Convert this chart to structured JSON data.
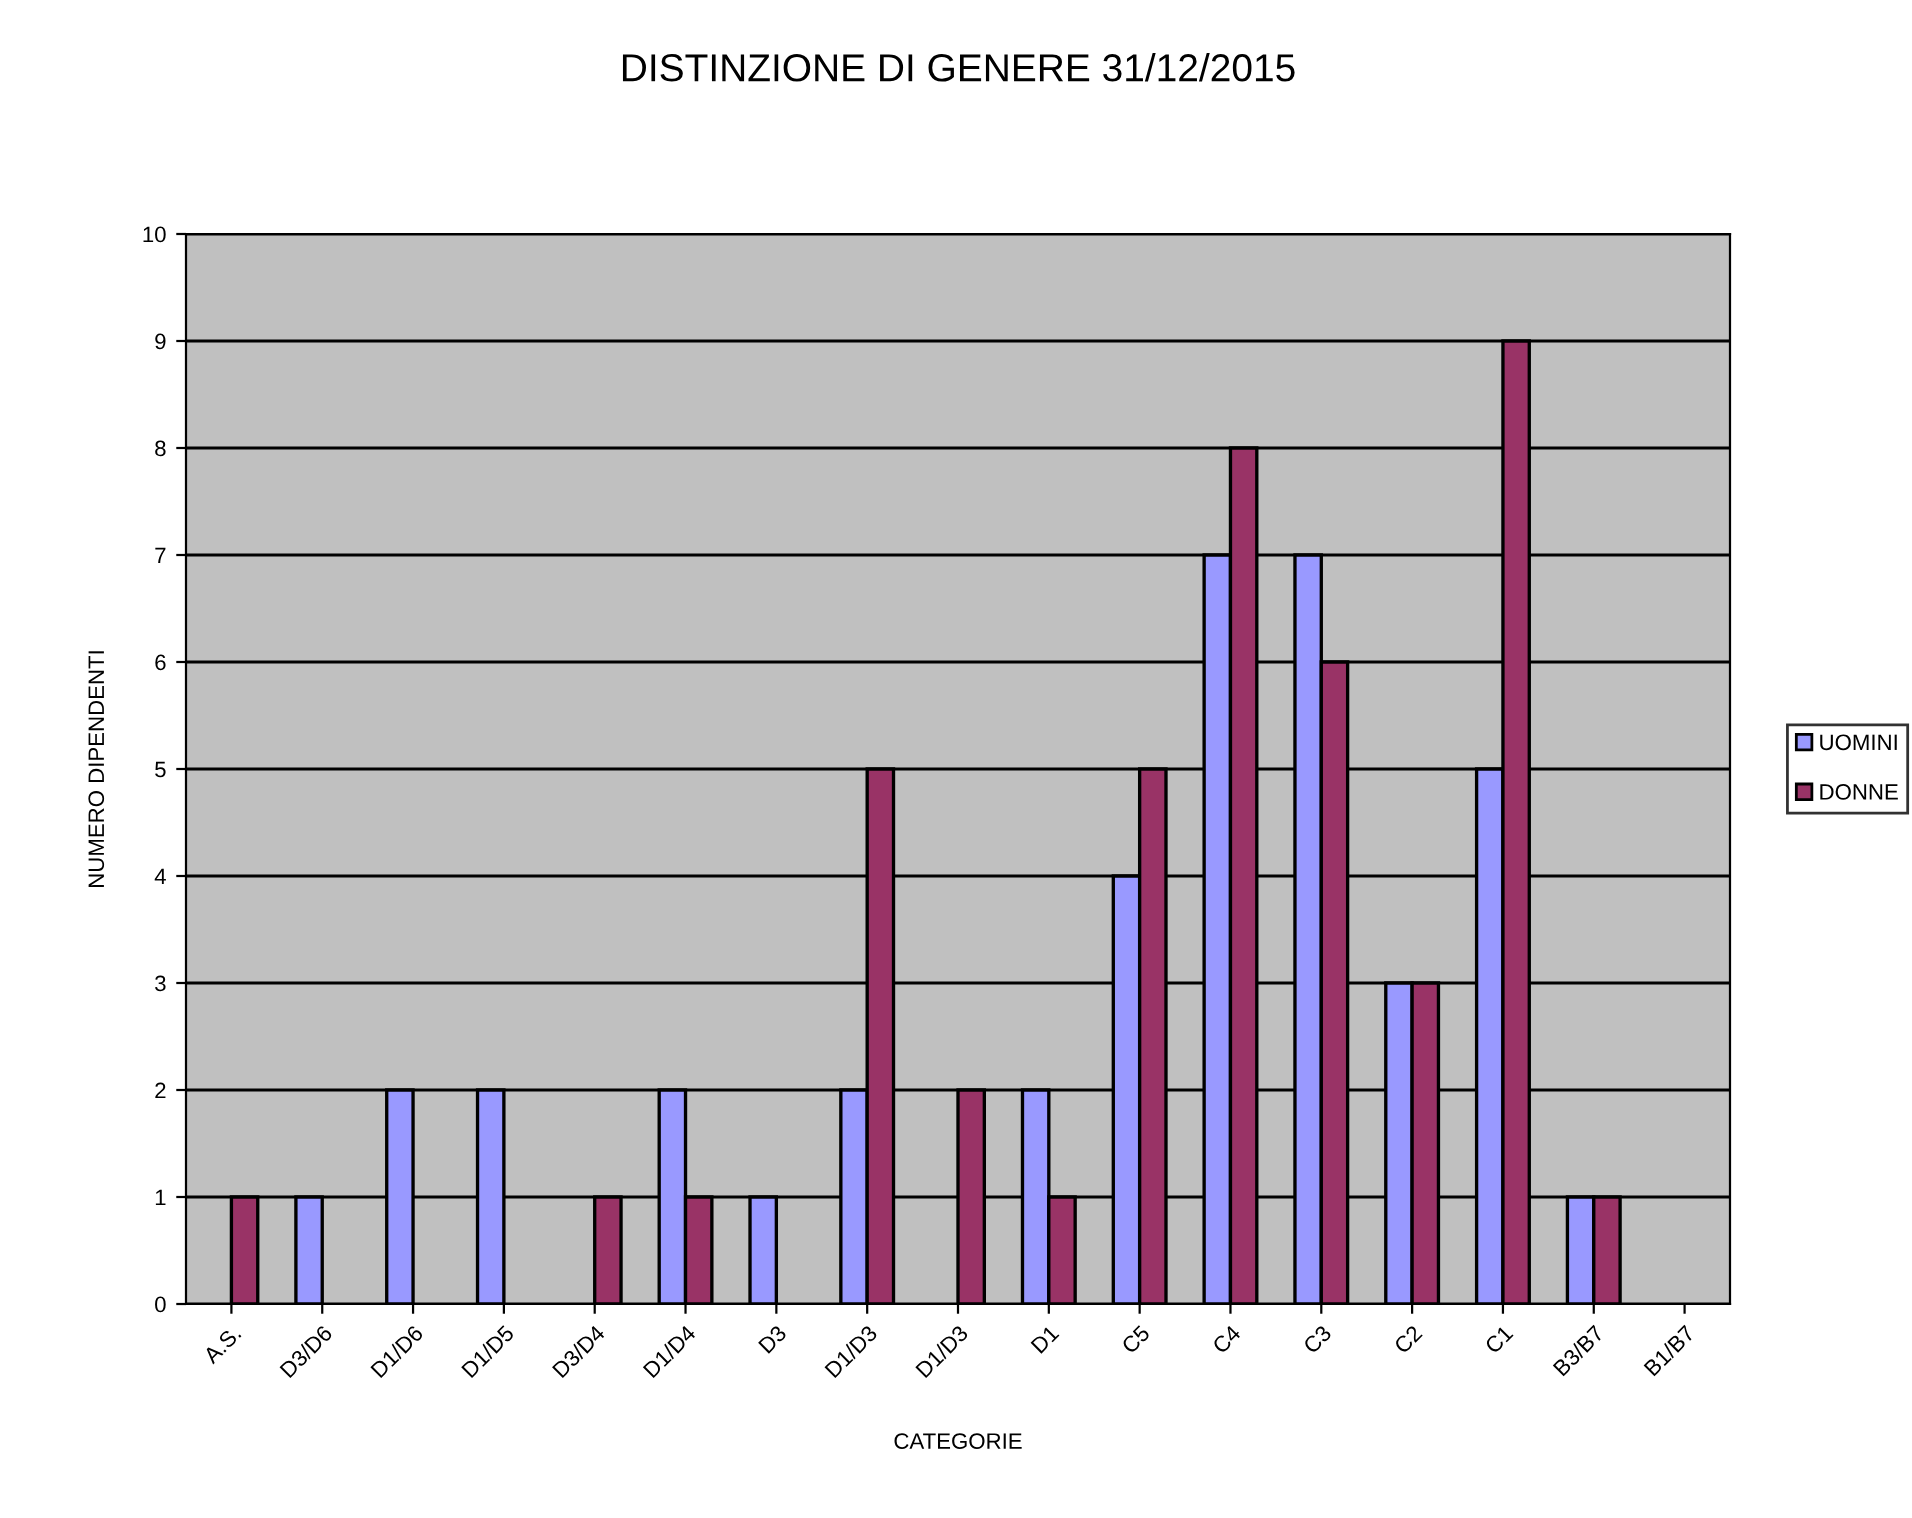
{
  "chart_data": {
    "type": "bar",
    "title": "DISTINZIONE DI GENERE 31/12/2015",
    "xlabel": "CATEGORIE",
    "ylabel": "NUMERO DIPENDENTI",
    "categories": [
      "A.S.",
      "D3/D6",
      "D1/D6",
      "D1/D5",
      "D3/D4",
      "D1/D4",
      "D3",
      "D1/D3",
      "D1/D3",
      "D1",
      "C5",
      "C4",
      "C3",
      "C2",
      "C1",
      "B3/B7",
      "B1/B7"
    ],
    "series": [
      {
        "name": "UOMINI",
        "color": "#9999ff",
        "values": [
          null,
          1,
          2,
          2,
          null,
          2,
          1,
          2,
          null,
          2,
          4,
          7,
          7,
          3,
          5,
          1,
          null
        ]
      },
      {
        "name": "DONNE",
        "color": "#993366",
        "values": [
          1,
          null,
          null,
          null,
          1,
          1,
          null,
          5,
          2,
          1,
          5,
          8,
          6,
          3,
          9,
          1,
          null
        ]
      }
    ],
    "ylim": [
      0,
      10
    ],
    "yticks": [
      0,
      1,
      2,
      3,
      4,
      5,
      6,
      7,
      8,
      9,
      10
    ],
    "grid": "y",
    "legend": "right"
  }
}
